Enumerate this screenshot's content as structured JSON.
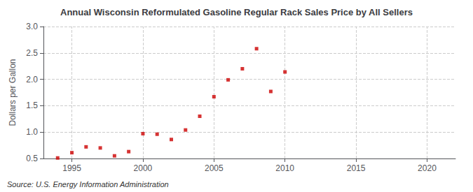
{
  "chart_data": {
    "type": "scatter",
    "title": "Annual Wisconsin Reformulated Gasoline Regular Rack Sales Price by All Sellers",
    "ylabel": "Dollars per Gallon",
    "source": "Source: U.S. Energy Information Administration",
    "x": [
      1994,
      1995,
      1996,
      1997,
      1998,
      1999,
      2000,
      2001,
      2002,
      2003,
      2004,
      2005,
      2006,
      2007,
      2008,
      2009,
      2010
    ],
    "values": [
      0.51,
      0.61,
      0.72,
      0.7,
      0.55,
      0.63,
      0.97,
      0.96,
      0.86,
      1.04,
      1.3,
      1.67,
      1.99,
      2.2,
      2.58,
      1.77,
      2.14
    ],
    "color": "#cc0000",
    "marker": "square",
    "xlim": [
      1993,
      2022
    ],
    "xticks": [
      1995,
      2000,
      2005,
      2010,
      2015,
      2020
    ],
    "ylim": [
      0.5,
      3.0
    ],
    "yticks": [
      0.5,
      {
        "value": 1.0,
        "label": "1.0"
      },
      1.5,
      {
        "value": 2.0,
        "label": "2.0"
      },
      2.5,
      {
        "value": 3.0,
        "label": "3.0"
      }
    ],
    "grid": true
  }
}
